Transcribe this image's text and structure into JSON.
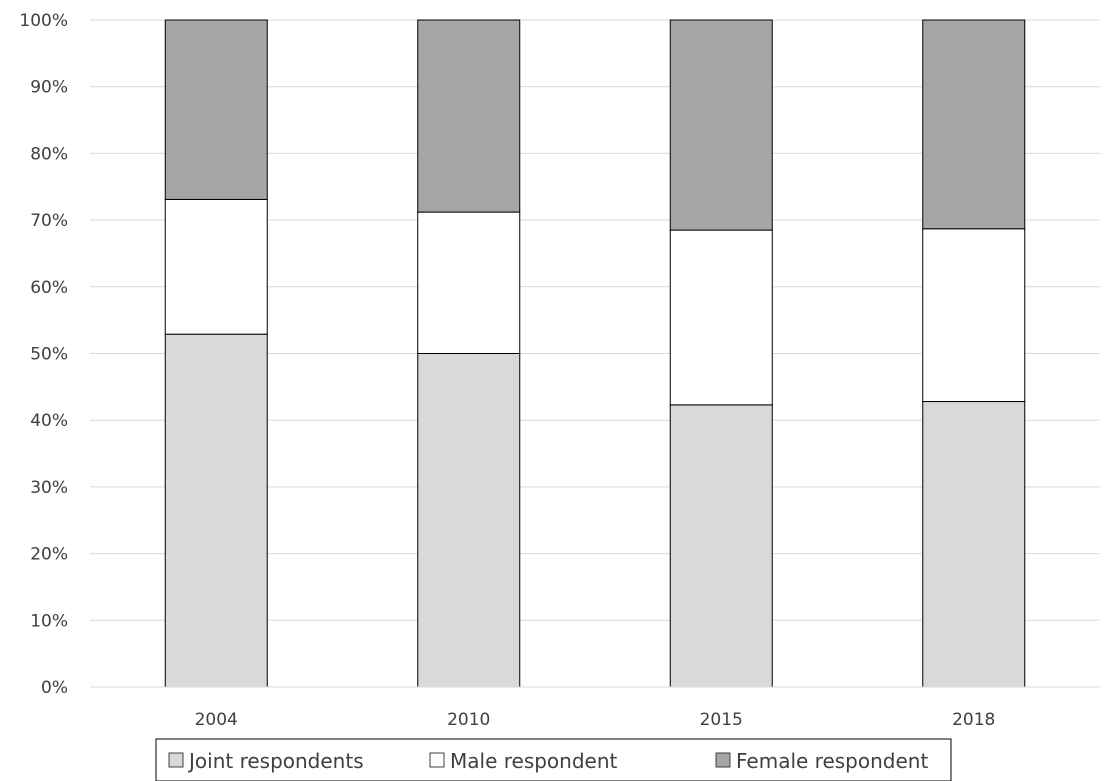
{
  "chart_data": {
    "type": "bar",
    "stacked": true,
    "categories": [
      "2004",
      "2010",
      "2015",
      "2018"
    ],
    "series": [
      {
        "name": "Joint respondents",
        "values": [
          52.9,
          50.0,
          42.3,
          42.8
        ],
        "color": "#d9d9d9"
      },
      {
        "name": "Male respondent",
        "values": [
          20.2,
          21.2,
          26.2,
          25.9
        ],
        "color": "#ffffff"
      },
      {
        "name": "Female respondent",
        "values": [
          26.9,
          28.8,
          31.5,
          31.3
        ],
        "color": "#a6a6a6"
      }
    ],
    "y_ticks": [
      "0%",
      "10%",
      "20%",
      "30%",
      "40%",
      "50%",
      "60%",
      "70%",
      "80%",
      "90%",
      "100%"
    ],
    "ylim": [
      0,
      100
    ],
    "grid": true,
    "legend": "bottom",
    "title": "",
    "xlabel": "",
    "ylabel": ""
  }
}
